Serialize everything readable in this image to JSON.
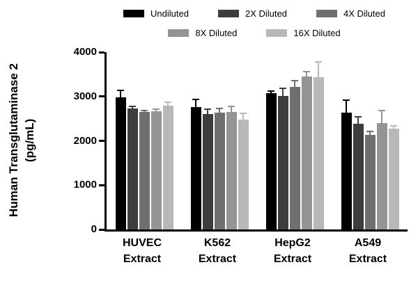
{
  "chart_data": {
    "type": "bar",
    "title": "",
    "ylabel_line1": "Human Transglutaminase 2",
    "ylabel_line2": "(pg/mL)",
    "ylim": [
      0,
      4000
    ],
    "yticks": [
      0,
      1000,
      2000,
      3000,
      4000
    ],
    "grid": false,
    "legend_position": "top",
    "categories": [
      [
        "HUVEC",
        "Extract"
      ],
      [
        "K562",
        "Extract"
      ],
      [
        "HepG2",
        "Extract"
      ],
      [
        "A549",
        "Extract"
      ]
    ],
    "legend_rows": [
      [
        0,
        1,
        2
      ],
      [
        3,
        4
      ]
    ],
    "series": [
      {
        "name": "Undiluted",
        "color": "#000000",
        "values": [
          2980,
          2760,
          3070,
          2640
        ],
        "errors": [
          170,
          190,
          60,
          290
        ]
      },
      {
        "name": "2X Diluted",
        "color": "#3d3d3d",
        "values": [
          2730,
          2600,
          3010,
          2390
        ],
        "errors": [
          60,
          130,
          190,
          160
        ]
      },
      {
        "name": "4X Diluted",
        "color": "#6f6f6f",
        "values": [
          2650,
          2640,
          3220,
          2130
        ],
        "errors": [
          50,
          110,
          150,
          90
        ]
      },
      {
        "name": "8X Diluted",
        "color": "#949494",
        "values": [
          2670,
          2650,
          3450,
          2400
        ],
        "errors": [
          60,
          140,
          120,
          300
        ]
      },
      {
        "name": "16X Diluted",
        "color": "#b8b8b8",
        "values": [
          2790,
          2480,
          3430,
          2280
        ],
        "errors": [
          90,
          160,
          360,
          70
        ]
      }
    ]
  }
}
